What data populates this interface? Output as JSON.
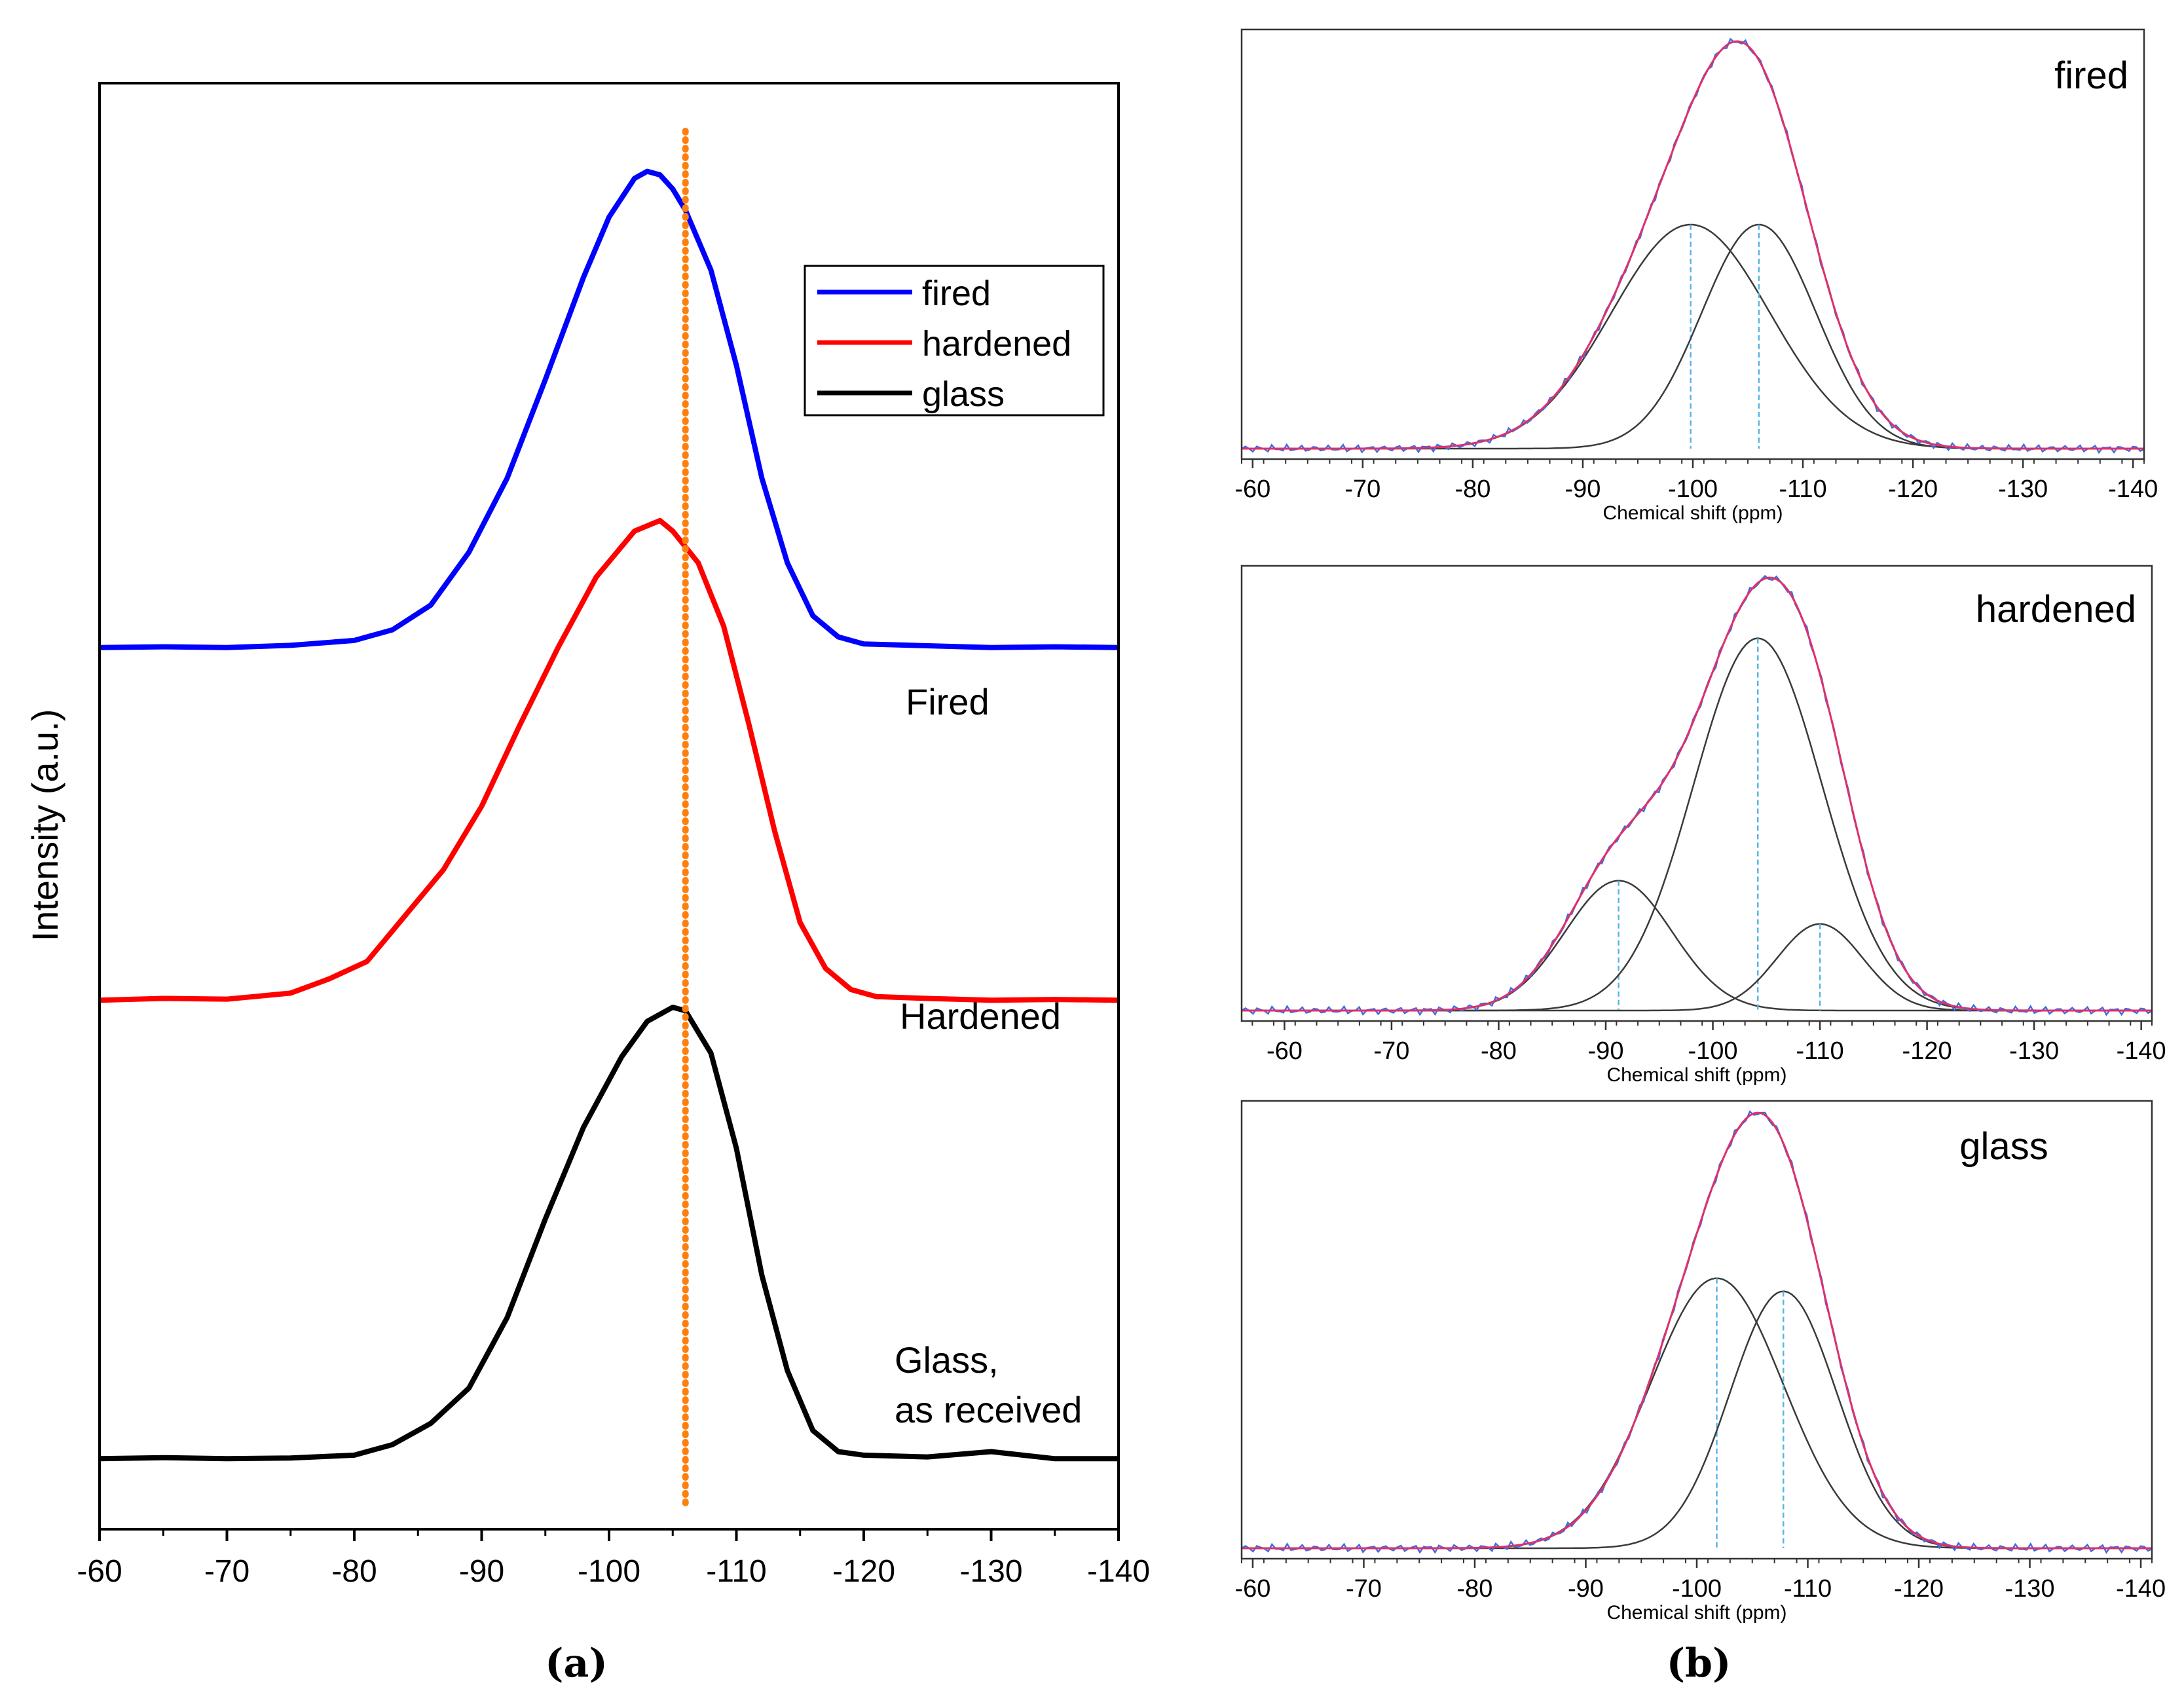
{
  "chart_data": [
    {
      "type": "line",
      "panel": "(a)",
      "ylabel": "Intensity (a.u.)",
      "xlabel": "",
      "xlim": [
        -60,
        -140
      ],
      "xticks": [
        -60,
        -70,
        -80,
        -90,
        -100,
        -110,
        -120,
        -130,
        -140
      ],
      "reference_line_ppm": -106,
      "reference_line_color": "#FF7F0E",
      "legend": {
        "placement": "top-right",
        "entries": [
          "fired",
          "hardened",
          "glass"
        ]
      },
      "series": [
        {
          "name": "fired",
          "color": "#0000FF",
          "label": "Fired",
          "baseline": 1.0,
          "x": [
            -60,
            -65,
            -70,
            -75,
            -80,
            -83,
            -86,
            -89,
            -92,
            -95,
            -98,
            -100,
            -102,
            -103,
            -104,
            -105,
            -106,
            -108,
            -110,
            -112,
            -114,
            -116,
            -118,
            -120,
            -125,
            -130,
            -135,
            -140
          ],
          "y": [
            1.0,
            1.002,
            1.0,
            1.006,
            1.02,
            1.05,
            1.12,
            1.27,
            1.48,
            1.76,
            2.05,
            2.22,
            2.33,
            2.35,
            2.34,
            2.3,
            2.24,
            2.07,
            1.8,
            1.48,
            1.24,
            1.09,
            1.03,
            1.01,
            1.005,
            1.0,
            1.002,
            1.0
          ]
        },
        {
          "name": "hardened",
          "color": "#FF0000",
          "label": "Hardened",
          "baseline": 0.0,
          "x": [
            -60,
            -65,
            -70,
            -75,
            -78,
            -81,
            -84,
            -87,
            -90,
            -93,
            -96,
            -99,
            -102,
            -104,
            -105,
            -107,
            -109,
            -111,
            -113,
            -115,
            -117,
            -119,
            -121,
            -125,
            -130,
            -135,
            -140
          ],
          "y": [
            0.0,
            0.005,
            0.003,
            0.02,
            0.06,
            0.11,
            0.24,
            0.37,
            0.55,
            0.78,
            1.0,
            1.2,
            1.33,
            1.36,
            1.33,
            1.24,
            1.06,
            0.78,
            0.48,
            0.22,
            0.09,
            0.03,
            0.01,
            0.005,
            0.0,
            0.002,
            0.0
          ]
        },
        {
          "name": "glass",
          "color": "#000000",
          "label": "Glass,\nas received",
          "baseline": -1.3,
          "x": [
            -60,
            -65,
            -70,
            -75,
            -80,
            -83,
            -86,
            -89,
            -92,
            -95,
            -98,
            -101,
            -103,
            -105,
            -106,
            -108,
            -110,
            -112,
            -114,
            -116,
            -118,
            -120,
            -125,
            -130,
            -135,
            -140
          ],
          "y": [
            -1.3,
            -1.297,
            -1.3,
            -1.298,
            -1.29,
            -1.26,
            -1.2,
            -1.1,
            -0.9,
            -0.62,
            -0.36,
            -0.16,
            -0.06,
            -0.02,
            -0.03,
            -0.15,
            -0.42,
            -0.78,
            -1.05,
            -1.22,
            -1.28,
            -1.29,
            -1.295,
            -1.28,
            -1.3,
            -1.3
          ]
        }
      ]
    },
    {
      "type": "line",
      "panel": "(b)",
      "title": "fired",
      "xlabel": "Chemical shift (ppm)",
      "xlim": [
        -59,
        -141
      ],
      "xticks": [
        -60,
        -70,
        -80,
        -90,
        -100,
        -110,
        -120,
        -130,
        -140
      ],
      "envelope": {
        "center": -103.8,
        "amplitude": 1.0,
        "color": "#E0306A"
      },
      "components": [
        {
          "center": -99.8,
          "amplitude": 0.55,
          "width": 7.2
        },
        {
          "center": -106.0,
          "amplitude": 0.55,
          "width": 5.2
        }
      ]
    },
    {
      "type": "line",
      "panel": "(b)",
      "title": "hardened",
      "xlabel": "Chemical shift (ppm)",
      "xlim": [
        -56,
        -141
      ],
      "xticks": [
        -60,
        -70,
        -80,
        -90,
        -100,
        -110,
        -120,
        -130,
        -140
      ],
      "envelope": {
        "center": -104.8,
        "amplitude": 1.0,
        "color": "#E0306A"
      },
      "components": [
        {
          "center": -91.2,
          "amplitude": 0.3,
          "width": 5.0
        },
        {
          "center": -104.2,
          "amplitude": 0.86,
          "width": 6.0
        },
        {
          "center": -110.0,
          "amplitude": 0.2,
          "width": 4.0
        }
      ]
    },
    {
      "type": "line",
      "panel": "(b)",
      "title": "glass",
      "xlabel": "Chemical shift (ppm)",
      "xlim": [
        -59,
        -141
      ],
      "xticks": [
        -60,
        -70,
        -80,
        -90,
        -100,
        -110,
        -120,
        -130,
        -140
      ],
      "envelope": {
        "center": -105.2,
        "amplitude": 1.0,
        "color": "#E0306A"
      },
      "components": [
        {
          "center": -101.8,
          "amplitude": 0.62,
          "width": 6.0
        },
        {
          "center": -107.8,
          "amplitude": 0.59,
          "width": 4.8
        }
      ]
    }
  ],
  "captions": {
    "a": "(a)",
    "b": "(b)"
  }
}
